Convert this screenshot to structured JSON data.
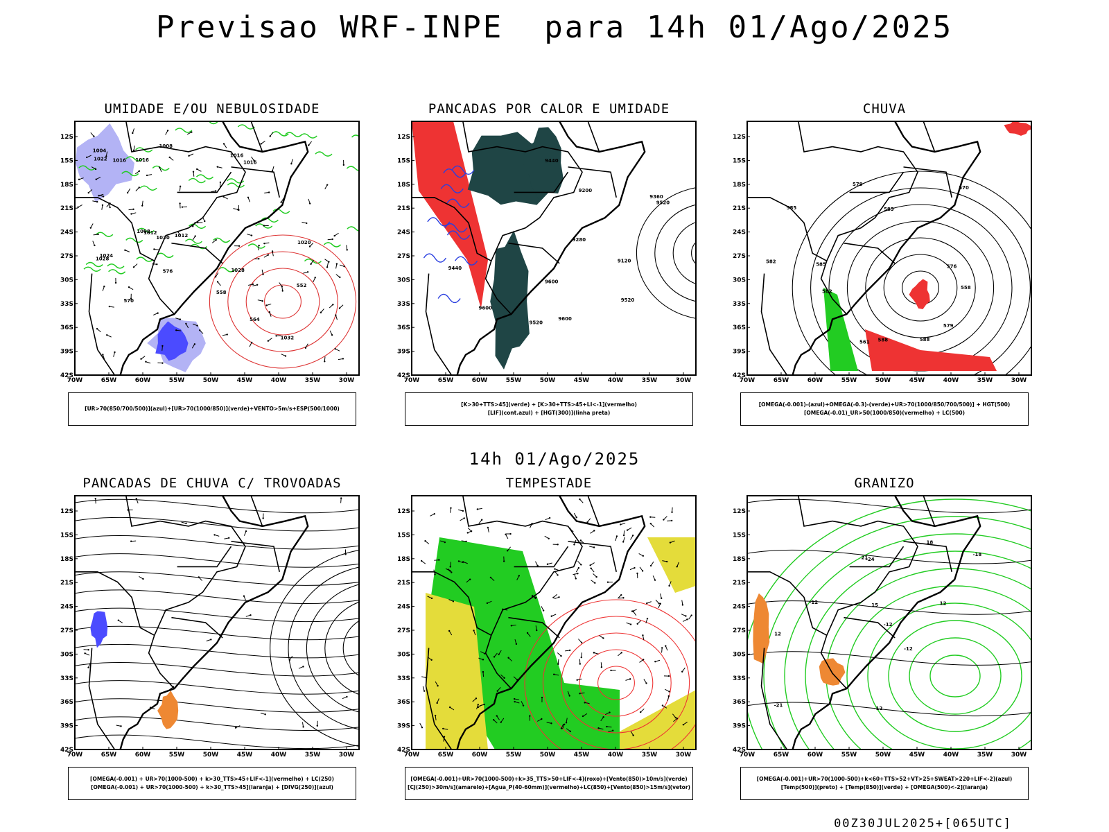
{
  "main_title": "Previsao WRF-INPE  para 14h 01/Ago/2025",
  "mid_title": "14h 01/Ago/2025",
  "footer": "00Z30JUL2025+[065UTC]",
  "lat_labels": [
    "12S",
    "15S",
    "18S",
    "21S",
    "24S",
    "27S",
    "30S",
    "33S",
    "36S",
    "39S",
    "42S"
  ],
  "lon_labels": [
    "70W",
    "65W",
    "60W",
    "55W",
    "50W",
    "45W",
    "40W",
    "35W",
    "30W"
  ],
  "colors": {
    "blue_shade": "#b3b3f5",
    "blue_deep": "#4b4bff",
    "green": "#22cc22",
    "red": "#ee3333",
    "dark_teal": "#1f4545",
    "yellow": "#e4dc3a",
    "orange": "#ee8833"
  },
  "panels": [
    {
      "title": "UMIDADE E/OU NEBULOSIDADE",
      "legend": [
        "[UR>70(850/700/500)](azul)+[UR>70(1000/850)](verde)+VENTO>5m/s+ESP(500/1000)"
      ],
      "labels": [
        "1016",
        "1016",
        "1012",
        "1008",
        "1016",
        "1022",
        "1024",
        "1020",
        "1028",
        "1032",
        "1012",
        "1016",
        "1020",
        "1008",
        "1004",
        "1028",
        "570",
        "564",
        "576",
        "558",
        "552"
      ]
    },
    {
      "title": "PANCADAS POR CALOR E UMIDADE",
      "legend": [
        "[K>30+TTS>45](verde) + [K>30+TTS>45+LI<-1](vermelho)",
        "[LIF](cont.azul) + [HGT(300)](linha preta)"
      ],
      "labels": [
        "9600",
        "9600",
        "9600",
        "9520",
        "9440",
        "9360",
        "9280",
        "9200",
        "9120",
        "9520",
        "9440",
        "9520"
      ]
    },
    {
      "title": "CHUVA",
      "legend": [
        "[OMEGA(-0.001)-(azul)+OMEGA(-0.3)-(verde)+UR>70(1000/850/700/500)] + HGT(500)",
        "[OMEGA(-0.01)_UR>50(1000/850)(vermelho) + LC(500)"
      ],
      "labels": [
        "585",
        "588",
        "585",
        "582",
        "579",
        "576",
        "570",
        "585",
        "561",
        "558",
        "582",
        "588",
        "579"
      ]
    },
    {
      "title": "PANCADAS DE CHUVA C/ TROVOADAS",
      "legend": [
        "[OMEGA(-0.001) + UR>70(1000-500) + k>30_TTS>45+LIF<-1](vermelho) + LC(250)",
        "[OMEGA(-0.001) + UR>70(1000-500) + k>30_TTS>45](laranja) + [DIVG(250)](azul)"
      ],
      "labels": []
    },
    {
      "title": "TEMPESTADE",
      "legend": [
        "[OMEGA(-0.001)+UR>70(1000-500)+k>35_TTS>50+LIF<-4](roxo)+[Vento(850)>10m/s](verde)",
        "[CJ(250)>30m/s](amarelo)+[Agua_P(40-60mm)](vermelho)+LC(850)+[Vento(850)>15m/s](vetor)"
      ],
      "labels": []
    },
    {
      "title": "GRANIZO",
      "legend": [
        "[OMEGA(-0.001)+UR>70(1000-500)+k<60+TTS>52+VT>25+SWEAT>220+LIF<-2](azul)",
        "[Temp(500)](preto) + [Temp(850)](verde) + [OMEGA(500)<-2](laranja)"
      ],
      "labels": [
        "-12",
        "-12",
        "-12",
        "-21",
        "-24",
        "12",
        "15",
        "18",
        "21",
        "12",
        "-12",
        "-18"
      ]
    }
  ]
}
